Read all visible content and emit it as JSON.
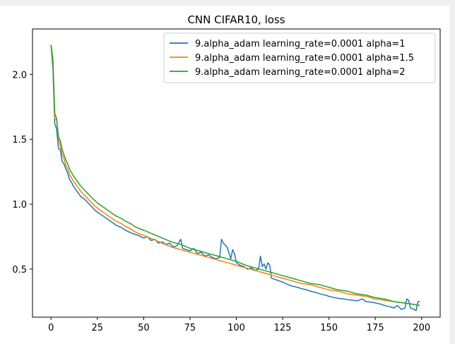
{
  "chart_data": {
    "type": "line",
    "title": "CNN CIFAR10, loss",
    "xlabel": "",
    "ylabel": "",
    "xlim": [
      -10,
      210
    ],
    "ylim": [
      0.13,
      2.35
    ],
    "x_ticks": [
      0,
      25,
      50,
      75,
      100,
      125,
      150,
      175,
      200
    ],
    "y_ticks": [
      0.5,
      1.0,
      1.5,
      2.0
    ],
    "grid": false,
    "legend_position": "top-right",
    "series": [
      {
        "name": "9.alpha_adam learning_rate=0.0001 alpha=1",
        "color": "#1f77b4",
        "points": [
          [
            0,
            2.22
          ],
          [
            1,
            2.05
          ],
          [
            2,
            1.62
          ],
          [
            3,
            1.58
          ],
          [
            4,
            1.43
          ],
          [
            5,
            1.42
          ],
          [
            6,
            1.33
          ],
          [
            7,
            1.31
          ],
          [
            8,
            1.27
          ],
          [
            9,
            1.24
          ],
          [
            10,
            1.19
          ],
          [
            11,
            1.17
          ],
          [
            12,
            1.14
          ],
          [
            13,
            1.12
          ],
          [
            14,
            1.1
          ],
          [
            15,
            1.08
          ],
          [
            16,
            1.06
          ],
          [
            18,
            1.04
          ],
          [
            20,
            1.01
          ],
          [
            22,
            0.98
          ],
          [
            24,
            0.95
          ],
          [
            25,
            0.94
          ],
          [
            27,
            0.92
          ],
          [
            30,
            0.89
          ],
          [
            32,
            0.87
          ],
          [
            35,
            0.84
          ],
          [
            38,
            0.82
          ],
          [
            40,
            0.8
          ],
          [
            43,
            0.78
          ],
          [
            45,
            0.77
          ],
          [
            47,
            0.76
          ],
          [
            50,
            0.74
          ],
          [
            52,
            0.75
          ],
          [
            54,
            0.72
          ],
          [
            56,
            0.73
          ],
          [
            58,
            0.7
          ],
          [
            60,
            0.71
          ],
          [
            62,
            0.69
          ],
          [
            64,
            0.7
          ],
          [
            66,
            0.67
          ],
          [
            68,
            0.68
          ],
          [
            70,
            0.73
          ],
          [
            71,
            0.66
          ],
          [
            73,
            0.65
          ],
          [
            75,
            0.64
          ],
          [
            77,
            0.66
          ],
          [
            79,
            0.62
          ],
          [
            81,
            0.63
          ],
          [
            83,
            0.6
          ],
          [
            85,
            0.61
          ],
          [
            87,
            0.59
          ],
          [
            89,
            0.58
          ],
          [
            91,
            0.59
          ],
          [
            92,
            0.73
          ],
          [
            93,
            0.7
          ],
          [
            95,
            0.67
          ],
          [
            97,
            0.58
          ],
          [
            98,
            0.65
          ],
          [
            99,
            0.62
          ],
          [
            100,
            0.55
          ],
          [
            102,
            0.53
          ],
          [
            104,
            0.52
          ],
          [
            106,
            0.5
          ],
          [
            108,
            0.51
          ],
          [
            110,
            0.49
          ],
          [
            112,
            0.5
          ],
          [
            113,
            0.6
          ],
          [
            114,
            0.52
          ],
          [
            115,
            0.54
          ],
          [
            116,
            0.5
          ],
          [
            117,
            0.55
          ],
          [
            118,
            0.53
          ],
          [
            119,
            0.43
          ],
          [
            121,
            0.42
          ],
          [
            123,
            0.41
          ],
          [
            125,
            0.4
          ],
          [
            128,
            0.38
          ],
          [
            130,
            0.37
          ],
          [
            133,
            0.36
          ],
          [
            135,
            0.35
          ],
          [
            138,
            0.34
          ],
          [
            140,
            0.33
          ],
          [
            143,
            0.32
          ],
          [
            145,
            0.31
          ],
          [
            148,
            0.3
          ],
          [
            150,
            0.29
          ],
          [
            153,
            0.28
          ],
          [
            155,
            0.275
          ],
          [
            158,
            0.27
          ],
          [
            160,
            0.265
          ],
          [
            163,
            0.26
          ],
          [
            165,
            0.255
          ],
          [
            168,
            0.27
          ],
          [
            170,
            0.25
          ],
          [
            173,
            0.245
          ],
          [
            175,
            0.24
          ],
          [
            178,
            0.23
          ],
          [
            180,
            0.22
          ],
          [
            183,
            0.21
          ],
          [
            185,
            0.2
          ],
          [
            187,
            0.22
          ],
          [
            189,
            0.19
          ],
          [
            191,
            0.2
          ],
          [
            192,
            0.27
          ],
          [
            193,
            0.26
          ],
          [
            194,
            0.2
          ],
          [
            196,
            0.19
          ],
          [
            197,
            0.18
          ],
          [
            198,
            0.25
          ],
          [
            199,
            0.25
          ]
        ]
      },
      {
        "name": "9.alpha_adam learning_rate=0.0001 alpha=1.5",
        "color": "#ff7f0e",
        "points": [
          [
            0,
            2.22
          ],
          [
            1,
            2.1
          ],
          [
            2,
            1.66
          ],
          [
            3,
            1.65
          ],
          [
            4,
            1.5
          ],
          [
            5,
            1.45
          ],
          [
            6,
            1.38
          ],
          [
            7,
            1.35
          ],
          [
            8,
            1.3
          ],
          [
            9,
            1.27
          ],
          [
            10,
            1.23
          ],
          [
            12,
            1.18
          ],
          [
            14,
            1.14
          ],
          [
            16,
            1.1
          ],
          [
            18,
            1.07
          ],
          [
            20,
            1.04
          ],
          [
            22,
            1.01
          ],
          [
            25,
            0.97
          ],
          [
            28,
            0.94
          ],
          [
            30,
            0.92
          ],
          [
            33,
            0.89
          ],
          [
            35,
            0.87
          ],
          [
            38,
            0.85
          ],
          [
            40,
            0.83
          ],
          [
            43,
            0.81
          ],
          [
            45,
            0.79
          ],
          [
            48,
            0.77
          ],
          [
            50,
            0.76
          ],
          [
            55,
            0.73
          ],
          [
            60,
            0.7
          ],
          [
            65,
            0.67
          ],
          [
            70,
            0.65
          ],
          [
            75,
            0.63
          ],
          [
            80,
            0.61
          ],
          [
            85,
            0.59
          ],
          [
            90,
            0.57
          ],
          [
            95,
            0.55
          ],
          [
            100,
            0.53
          ],
          [
            105,
            0.51
          ],
          [
            110,
            0.49
          ],
          [
            115,
            0.47
          ],
          [
            120,
            0.45
          ],
          [
            125,
            0.43
          ],
          [
            130,
            0.41
          ],
          [
            135,
            0.39
          ],
          [
            140,
            0.38
          ],
          [
            145,
            0.36
          ],
          [
            150,
            0.34
          ],
          [
            155,
            0.33
          ],
          [
            160,
            0.31
          ],
          [
            165,
            0.3
          ],
          [
            170,
            0.29
          ],
          [
            175,
            0.27
          ],
          [
            180,
            0.26
          ],
          [
            185,
            0.25
          ],
          [
            190,
            0.24
          ],
          [
            195,
            0.23
          ],
          [
            199,
            0.22
          ]
        ]
      },
      {
        "name": "9.alpha_adam learning_rate=0.0001 alpha=2",
        "color": "#2ca02c",
        "points": [
          [
            0,
            2.23
          ],
          [
            1,
            2.12
          ],
          [
            2,
            1.7
          ],
          [
            3,
            1.66
          ],
          [
            4,
            1.52
          ],
          [
            5,
            1.49
          ],
          [
            6,
            1.42
          ],
          [
            7,
            1.38
          ],
          [
            8,
            1.34
          ],
          [
            9,
            1.31
          ],
          [
            10,
            1.27
          ],
          [
            12,
            1.22
          ],
          [
            14,
            1.18
          ],
          [
            16,
            1.14
          ],
          [
            18,
            1.11
          ],
          [
            20,
            1.08
          ],
          [
            22,
            1.05
          ],
          [
            25,
            1.01
          ],
          [
            28,
            0.98
          ],
          [
            30,
            0.96
          ],
          [
            33,
            0.93
          ],
          [
            35,
            0.91
          ],
          [
            38,
            0.89
          ],
          [
            40,
            0.87
          ],
          [
            43,
            0.85
          ],
          [
            45,
            0.83
          ],
          [
            48,
            0.81
          ],
          [
            50,
            0.8
          ],
          [
            55,
            0.77
          ],
          [
            60,
            0.74
          ],
          [
            65,
            0.71
          ],
          [
            70,
            0.69
          ],
          [
            75,
            0.66
          ],
          [
            80,
            0.64
          ],
          [
            85,
            0.62
          ],
          [
            90,
            0.6
          ],
          [
            95,
            0.58
          ],
          [
            100,
            0.56
          ],
          [
            105,
            0.53
          ],
          [
            110,
            0.51
          ],
          [
            115,
            0.49
          ],
          [
            120,
            0.47
          ],
          [
            125,
            0.45
          ],
          [
            130,
            0.43
          ],
          [
            135,
            0.41
          ],
          [
            140,
            0.39
          ],
          [
            145,
            0.38
          ],
          [
            150,
            0.36
          ],
          [
            155,
            0.34
          ],
          [
            160,
            0.33
          ],
          [
            165,
            0.31
          ],
          [
            170,
            0.3
          ],
          [
            175,
            0.28
          ],
          [
            180,
            0.27
          ],
          [
            185,
            0.25
          ],
          [
            190,
            0.24
          ],
          [
            195,
            0.23
          ],
          [
            199,
            0.22
          ]
        ]
      }
    ]
  }
}
